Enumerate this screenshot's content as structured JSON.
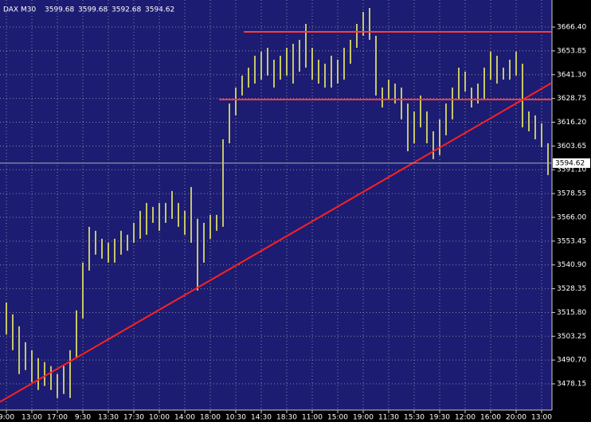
{
  "chart_data": {
    "type": "range",
    "title": "DAX M30",
    "last_ohlc": [
      3599.68,
      3599.68,
      3592.68,
      3594.62
    ],
    "color": "#ffff66",
    "background": "#1c1c72",
    "grid": true,
    "categories": [
      "9:00",
      null,
      null,
      null,
      "13:00",
      null,
      null,
      null,
      "17:00",
      null,
      null,
      null,
      "9:30",
      null,
      null,
      null,
      "13:30",
      null,
      null,
      null,
      "17:30",
      null,
      null,
      null,
      "10:00",
      null,
      null,
      null,
      "14:00",
      null,
      null,
      null,
      "18:00",
      null,
      null,
      null,
      "10:30",
      null,
      null,
      null,
      "14:30",
      null,
      null,
      null,
      "18:30",
      null,
      null,
      null,
      "11:00",
      null,
      null,
      null,
      "15:00",
      null,
      null,
      null,
      "19:00",
      null,
      null,
      null,
      "11:30",
      null,
      null,
      null,
      "15:30",
      null,
      null,
      null,
      "19:30",
      null,
      null,
      null,
      "12:00",
      null,
      null,
      null,
      "16:00",
      null,
      null,
      null,
      "20:00",
      null,
      null,
      null,
      "13:00",
      null
    ],
    "high": [
      3521.1,
      3514.8,
      3508.5,
      3500.1,
      3495.9,
      3491.7,
      3489.6,
      3487.5,
      3483.3,
      3487.5,
      3495.9,
      3516.9,
      3542.1,
      3561.0,
      3558.9,
      3554.7,
      3552.6,
      3554.7,
      3558.9,
      3556.8,
      3563.1,
      3569.4,
      3573.6,
      3571.5,
      3573.6,
      3573.6,
      3579.9,
      3573.6,
      3569.4,
      3582.0,
      3565.2,
      3563.1,
      3567.3,
      3567.3,
      3607.2,
      3626.1,
      3634.5,
      3640.8,
      3645.0,
      3651.3,
      3653.4,
      3655.5,
      3649.2,
      3651.3,
      3655.5,
      3657.6,
      3659.7,
      3668.1,
      3655.5,
      3649.2,
      3647.1,
      3651.3,
      3649.2,
      3655.5,
      3659.7,
      3668.1,
      3674.4,
      3676.5,
      3661.8,
      3634.5,
      3638.7,
      3636.6,
      3634.5,
      3626.1,
      3621.9,
      3630.3,
      3621.9,
      3611.4,
      3617.7,
      3626.1,
      3634.5,
      3645.0,
      3642.9,
      3634.5,
      3636.6,
      3645.0,
      3653.4,
      3651.3,
      3645.0,
      3649.2,
      3653.4,
      3647.1,
      3621.9,
      3619.8,
      3615.6,
      3605.1
    ],
    "low": [
      3504.3,
      3495.9,
      3483.3,
      3485.4,
      3479.1,
      3474.9,
      3477.0,
      3474.9,
      3470.7,
      3472.8,
      3470.7,
      3491.7,
      3512.7,
      3537.9,
      3546.3,
      3544.2,
      3542.1,
      3542.1,
      3546.3,
      3548.4,
      3552.6,
      3554.7,
      3556.8,
      3563.1,
      3558.9,
      3563.1,
      3565.2,
      3561.0,
      3556.8,
      3552.6,
      3527.4,
      3542.1,
      3554.7,
      3558.9,
      3561.0,
      3605.1,
      3619.8,
      3630.3,
      3634.5,
      3636.6,
      3638.7,
      3640.8,
      3634.5,
      3638.7,
      3640.8,
      3636.6,
      3642.9,
      3645.0,
      3638.7,
      3636.6,
      3634.5,
      3634.5,
      3636.6,
      3638.7,
      3647.1,
      3655.5,
      3661.8,
      3659.7,
      3630.3,
      3624.0,
      3628.2,
      3626.1,
      3617.7,
      3600.9,
      3605.1,
      3613.5,
      3605.1,
      3596.7,
      3598.8,
      3609.3,
      3617.7,
      3628.2,
      3632.4,
      3624.0,
      3626.1,
      3628.2,
      3638.7,
      3636.6,
      3638.7,
      3638.7,
      3640.8,
      3613.5,
      3611.4,
      3607.2,
      3603.0,
      3588.3
    ],
    "lines": [
      {
        "color": "#ff3c3c",
        "x": [
          37.25,
          85.6
        ],
        "values": [
          3663.9,
          3663.9
        ]
      },
      {
        "color": "#ff3c3c",
        "x": [
          33.4,
          85.6
        ],
        "values": [
          3628.2,
          3628.2
        ]
      },
      {
        "color": "#ff2020",
        "x": [
          -1,
          85.6
        ],
        "values": [
          3468.6,
          3637.0
        ]
      }
    ],
    "ylim": [
      3464.3,
      3680.7
    ],
    "yticks": [
      {
        "value": 3666.4,
        "label": "3666.40"
      },
      {
        "value": 3653.85,
        "label": "3653.85"
      },
      {
        "value": 3641.3,
        "label": "3641.30"
      },
      {
        "value": 3628.75,
        "label": "3628.75"
      },
      {
        "value": 3616.2,
        "label": "3616.20"
      },
      {
        "value": 3603.65,
        "label": "3603.65"
      },
      {
        "value": 3591.1,
        "label": "3591.10"
      },
      {
        "value": 3578.55,
        "label": "3578.55"
      },
      {
        "value": 3566,
        "label": "3566.00"
      },
      {
        "value": 3553.45,
        "label": "3553.45"
      },
      {
        "value": 3540.9,
        "label": "3540.90"
      },
      {
        "value": 3528.35,
        "label": "3528.35"
      },
      {
        "value": 3515.8,
        "label": "3515.80"
      },
      {
        "value": 3503.25,
        "label": "3503.25"
      },
      {
        "value": 3490.7,
        "label": "3490.70"
      },
      {
        "value": 3478.15,
        "label": "3478.15"
      }
    ]
  }
}
